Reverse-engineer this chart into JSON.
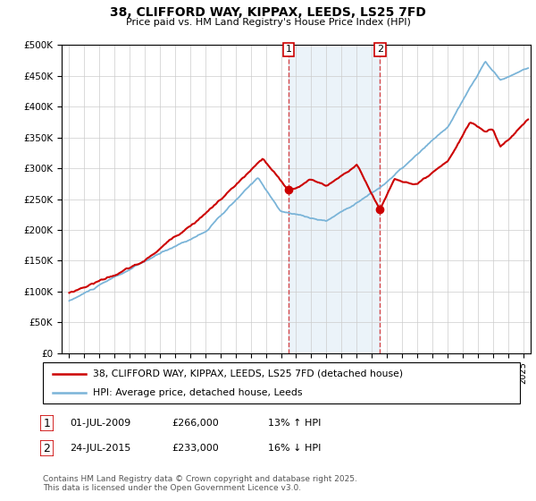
{
  "title": "38, CLIFFORD WAY, KIPPAX, LEEDS, LS25 7FD",
  "subtitle": "Price paid vs. HM Land Registry's House Price Index (HPI)",
  "ylabel_ticks": [
    "£0",
    "£50K",
    "£100K",
    "£150K",
    "£200K",
    "£250K",
    "£300K",
    "£350K",
    "£400K",
    "£450K",
    "£500K"
  ],
  "ytick_values": [
    0,
    50000,
    100000,
    150000,
    200000,
    250000,
    300000,
    350000,
    400000,
    450000,
    500000
  ],
  "ylim": [
    0,
    500000
  ],
  "xlim_start": 1994.5,
  "xlim_end": 2025.5,
  "red_line_color": "#cc0000",
  "blue_line_color": "#7ab4d8",
  "fill_color": "#c8dff0",
  "fill_alpha": 0.5,
  "vline_color": "#cc0000",
  "vline_alpha": 0.7,
  "sale1_x": 2009.5,
  "sale1_y": 266000,
  "sale2_x": 2015.55,
  "sale2_y": 233000,
  "legend_line1": "38, CLIFFORD WAY, KIPPAX, LEEDS, LS25 7FD (detached house)",
  "legend_line2": "HPI: Average price, detached house, Leeds",
  "footnote": "Contains HM Land Registry data © Crown copyright and database right 2025.\nThis data is licensed under the Open Government Licence v3.0.",
  "background_color": "#ffffff",
  "plot_bg_color": "#ffffff",
  "grid_color": "#cccccc"
}
